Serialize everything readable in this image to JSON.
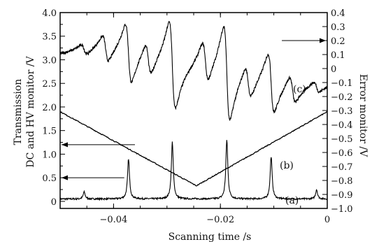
{
  "chart_data": {
    "type": "line",
    "xlabel": "Scanning time /s",
    "ylabel_left_line1": "Transmission",
    "ylabel_left_line2": "DC and HV monitor /V",
    "ylabel_right": "Error monitor /V",
    "xlim": [
      -0.05,
      0.0
    ],
    "ylim_left": [
      -0.15,
      4.0
    ],
    "ylim_right": [
      -1.0,
      0.4
    ],
    "x_ticks": [
      -0.04,
      -0.02,
      0.0
    ],
    "x_tick_labels": [
      "−0.04",
      "−0.02",
      "0"
    ],
    "y_left_ticks": [
      0,
      0.5,
      1.0,
      1.5,
      2.0,
      2.5,
      3.0,
      3.5,
      4.0
    ],
    "y_left_tick_labels": [
      "0",
      "0.5",
      "1.0",
      "1.5",
      "2.0",
      "2.5",
      "3.0",
      "3.5",
      "4.0"
    ],
    "y_right_ticks": [
      0.4,
      0.3,
      0.2,
      0.1,
      0,
      -0.1,
      -0.2,
      -0.3,
      -0.4,
      -0.5,
      -0.6,
      -0.7,
      -0.8,
      -0.9,
      -1.0
    ],
    "y_right_tick_labels": [
      "0.4",
      "0.3",
      "0.2",
      "0.1",
      "0",
      "−0.1",
      "−0.2",
      "−0.3",
      "−0.4",
      "−0.5",
      "−0.6",
      "−0.7",
      "−0.8",
      "−0.9",
      "−1.0"
    ],
    "series": [
      {
        "label": "(a)",
        "axis": "left",
        "baseline": 0.05,
        "peaks": [
          {
            "x": -0.0455,
            "y": 0.2
          },
          {
            "x": -0.0372,
            "y": 0.9
          },
          {
            "x": -0.029,
            "y": 1.25
          },
          {
            "x": -0.0188,
            "y": 1.3
          },
          {
            "x": -0.0105,
            "y": 0.95
          },
          {
            "x": -0.002,
            "y": 0.25
          }
        ]
      },
      {
        "label": "(b)",
        "axis": "left",
        "x": [
          -0.05,
          -0.0245,
          0.0
        ],
        "y": [
          1.9,
          0.33,
          1.9
        ]
      },
      {
        "label": "(c)",
        "axis": "right",
        "baseline": 0.0,
        "features": [
          {
            "x": -0.0455,
            "amplitude": 0.04
          },
          {
            "x": -0.0372,
            "amplitude": 0.22
          },
          {
            "x": -0.029,
            "amplitude": 0.32
          },
          {
            "x": -0.0188,
            "amplitude": 0.35
          },
          {
            "x": -0.0105,
            "amplitude": 0.22
          },
          {
            "x": -0.002,
            "amplitude": 0.04
          },
          {
            "x": -0.0415,
            "amplitude": 0.1
          },
          {
            "x": -0.0335,
            "amplitude": 0.12
          },
          {
            "x": -0.0228,
            "amplitude": 0.15
          },
          {
            "x": -0.0148,
            "amplitude": 0.12
          },
          {
            "x": -0.0065,
            "amplitude": 0.1
          }
        ]
      }
    ]
  }
}
